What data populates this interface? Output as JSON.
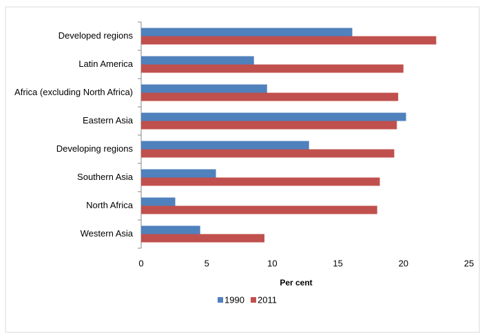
{
  "chart_data": {
    "type": "bar",
    "orientation": "horizontal",
    "x_label": "Per cent",
    "categories": [
      "Developed regions",
      "Latin America",
      "Africa (excluding North Africa)",
      "Eastern Asia",
      "Developing regions",
      "Southern Asia",
      "North Africa",
      "Western Asia"
    ],
    "series": [
      {
        "name": "1990",
        "color": "#4f81bd",
        "values": [
          16.1,
          8.6,
          9.6,
          20.2,
          12.8,
          5.7,
          2.6,
          4.5
        ]
      },
      {
        "name": "2011",
        "color": "#c0504d",
        "values": [
          22.5,
          20.0,
          19.6,
          19.5,
          19.3,
          18.2,
          18.0,
          9.4
        ]
      }
    ],
    "xlim": [
      0,
      25
    ],
    "xticks": [
      0,
      5,
      10,
      15,
      20,
      25
    ],
    "grid": false,
    "legend": "bottom"
  }
}
